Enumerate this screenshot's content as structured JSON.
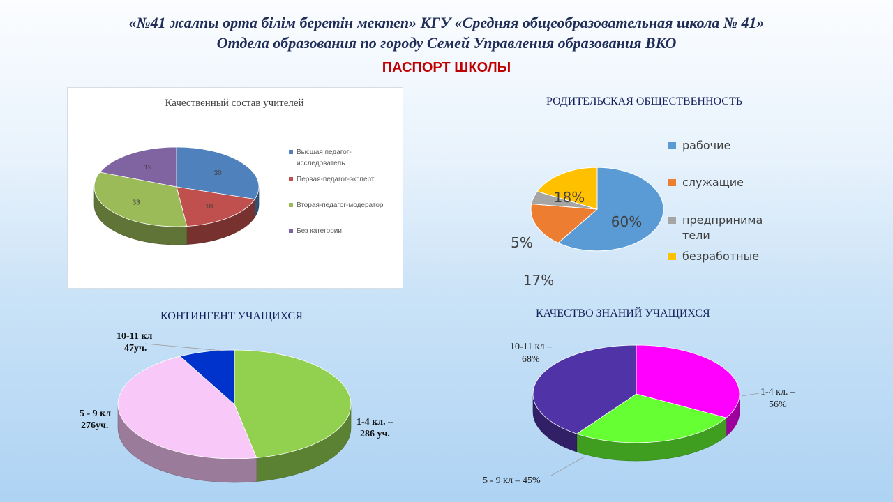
{
  "header": {
    "line1": "«№41 жалпы орта білім беретін мектеп»   КГУ «Средняя общеобразовательная школа № 41»",
    "line2": "Отдела образования по городу Семей  Управления образования ВКО",
    "passport": "ПАСПОРТ ШКОЛЫ"
  },
  "colors": {
    "header_text": "#1f2d57",
    "passport_text": "#c00000"
  },
  "chart_data": [
    {
      "id": "teachers",
      "type": "pie",
      "title": "Качественный состав учителей",
      "categories": [
        "Высшая педагог-исследователь",
        "Первая-педагог-эксперт",
        "Вторая-педагог-модератор",
        "Без категории"
      ],
      "values": [
        30,
        18,
        33,
        19
      ],
      "data_labels": [
        "30",
        "18",
        "33",
        "19"
      ],
      "colors": [
        "#4f81bd",
        "#c0504d",
        "#9bbb59",
        "#8064a2"
      ],
      "legend": "right"
    },
    {
      "id": "parents",
      "type": "pie",
      "title": "РОДИТЕЛЬСКАЯ ОБЩЕСТВЕННОСТЬ",
      "categories": [
        "рабочие",
        "служащие",
        "предпринима тели",
        "безработные"
      ],
      "values": [
        60,
        17,
        5,
        18
      ],
      "data_labels": [
        "60%",
        "17%",
        "5%",
        "18%"
      ],
      "colors": [
        "#5b9bd5",
        "#ed7d31",
        "#a5a5a5",
        "#ffc000"
      ],
      "legend": "right"
    },
    {
      "id": "students",
      "type": "pie",
      "title": "КОНТИНГЕНТ УЧАЩИХСЯ",
      "categories": [
        "1-4 кл.",
        "5 - 9 кл",
        "10-11 кл"
      ],
      "values": [
        286,
        276,
        47
      ],
      "data_labels": [
        "1-4 кл. – 286 уч.",
        "5 - 9 кл 276уч.",
        "10-11 кл 47уч."
      ],
      "colors": [
        "#92d050",
        "#f8c8f8",
        "#0033cc"
      ]
    },
    {
      "id": "quality",
      "type": "pie",
      "title": "КАЧЕСТВО ЗНАНИЙ  УЧАЩИХСЯ",
      "categories": [
        "1-4 кл.",
        "5 - 9 кл",
        "10-11 кл"
      ],
      "values": [
        56,
        45,
        68
      ],
      "data_labels": [
        "1-4 кл. – 56%",
        "5 - 9 кл – 45%",
        "10-11 кл – 68%"
      ],
      "colors": [
        "#ff00ff",
        "#66ff33",
        "#5033a6"
      ]
    }
  ]
}
